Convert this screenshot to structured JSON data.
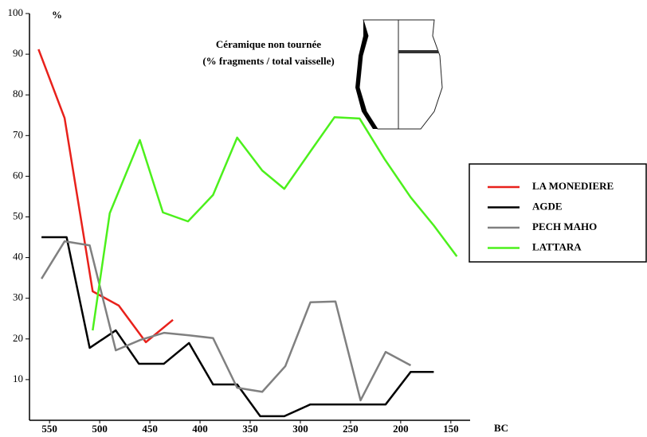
{
  "chart_data": {
    "type": "line",
    "title": [
      "Céramique non tournée",
      "(% fragments / total vaisselle)"
    ],
    "y_unit_label": "%",
    "x_unit_label": "BC",
    "xlim": [
      570,
      130
    ],
    "xticks": [
      550,
      500,
      450,
      400,
      350,
      300,
      250,
      200,
      150
    ],
    "ylim": [
      0,
      100
    ],
    "yticks": [
      10,
      20,
      30,
      40,
      50,
      60,
      70,
      80,
      90,
      100
    ],
    "series": [
      {
        "name": "LA MONEDIERE",
        "color": "#e8211b",
        "x": [
          561,
          535,
          507,
          481,
          454,
          427
        ],
        "values": [
          91.2,
          74.3,
          31.7,
          28.2,
          19.2,
          24.7
        ]
      },
      {
        "name": "AGDE",
        "color": "#000000",
        "x": [
          558,
          533,
          510,
          484,
          461,
          436,
          411,
          387,
          363,
          340,
          316,
          290,
          267,
          240,
          215,
          190,
          167
        ],
        "values": [
          45,
          45,
          17.8,
          22.1,
          13.9,
          13.9,
          19,
          8.8,
          8.8,
          1,
          1,
          3.9,
          3.9,
          3.9,
          3.9,
          11.9,
          11.9
        ]
      },
      {
        "name": "PECH MAHO",
        "color": "#808080",
        "x": [
          558,
          535,
          510,
          484,
          459,
          436,
          411,
          387,
          363,
          338,
          315,
          290,
          265,
          240,
          215,
          190
        ],
        "values": [
          34.8,
          44,
          43,
          17.2,
          19.8,
          21.5,
          20.9,
          20.2,
          8,
          7,
          13.3,
          29,
          29.2,
          4.9,
          16.8,
          13.5
        ]
      },
      {
        "name": "LATTARA",
        "color": "#4cf01c",
        "x": [
          507,
          490,
          460,
          437,
          412,
          387,
          363,
          338,
          316,
          290,
          266,
          241,
          216,
          190,
          167,
          144
        ],
        "values": [
          22.1,
          50.9,
          68.9,
          51.1,
          48.9,
          55.4,
          69.5,
          61.4,
          56.9,
          66.1,
          74.5,
          74.2,
          64.2,
          54.8,
          47.9,
          40.3
        ]
      }
    ]
  }
}
